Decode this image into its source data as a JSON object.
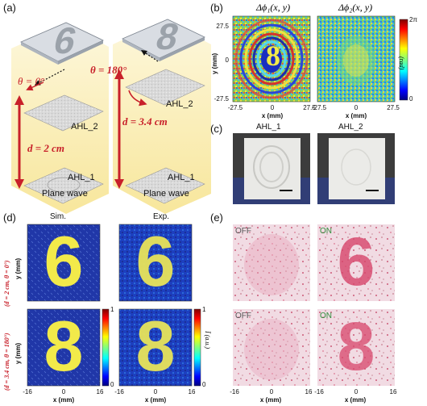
{
  "panel_labels": {
    "a": "(a)",
    "b": "(b)",
    "c": "(c)",
    "d": "(d)",
    "e": "(e)"
  },
  "panel_a": {
    "left": {
      "theta": "θ = 0°",
      "d": "d = 2 cm",
      "ahl_top": "AHL_2",
      "ahl_bottom": "AHL_1",
      "wave": "Plane wave",
      "digit": "6"
    },
    "right": {
      "theta": "θ = 180°",
      "d": "d = 3.4 cm",
      "ahl_top": "AHL_2",
      "ahl_bottom": "AHL_1",
      "wave": "Plane wave",
      "digit": "8"
    }
  },
  "panel_b": {
    "left_title": "Δϕ₁(x, y)",
    "right_title": "Δϕ₂(x, y)",
    "y_ticks": [
      "27.5",
      "0",
      "-27.5"
    ],
    "x_ticks": [
      "-27.5",
      "0",
      "27.5"
    ],
    "y_label": "y (mm)",
    "x_label": "x (mm)",
    "colorbar_top": "2π",
    "colorbar_bottom": "0",
    "colorbar_label": "(rad)"
  },
  "panel_c": {
    "left_title": "AHL_1",
    "right_title": "AHL_2"
  },
  "panel_d": {
    "sim_title": "Sim.",
    "exp_title": "Exp.",
    "row1_label": "(d = 2 cm, θ = 0°)",
    "row2_label": "(d = 3.4 cm, θ = 180°)",
    "y_label": "y (mm)",
    "x_label": "x (mm)",
    "x_ticks": [
      "-16",
      "0",
      "16"
    ],
    "colorbar_top": "1",
    "colorbar_bottom": "0",
    "colorbar_label": "Ī (a.u.)",
    "digit_row1": "6",
    "digit_row2": "8"
  },
  "panel_e": {
    "off_label": "OFF",
    "on_label": "ON",
    "x_ticks": [
      "-16",
      "0",
      "16"
    ],
    "x_label": "x (mm)",
    "digit_row1": "6",
    "digit_row2": "8"
  },
  "colors": {
    "red": "#c8202a",
    "jet_low": "#00007f",
    "jet_high": "#7f0000",
    "stain": "#d33f6c",
    "yellow_plane": "#fbf0bc"
  }
}
